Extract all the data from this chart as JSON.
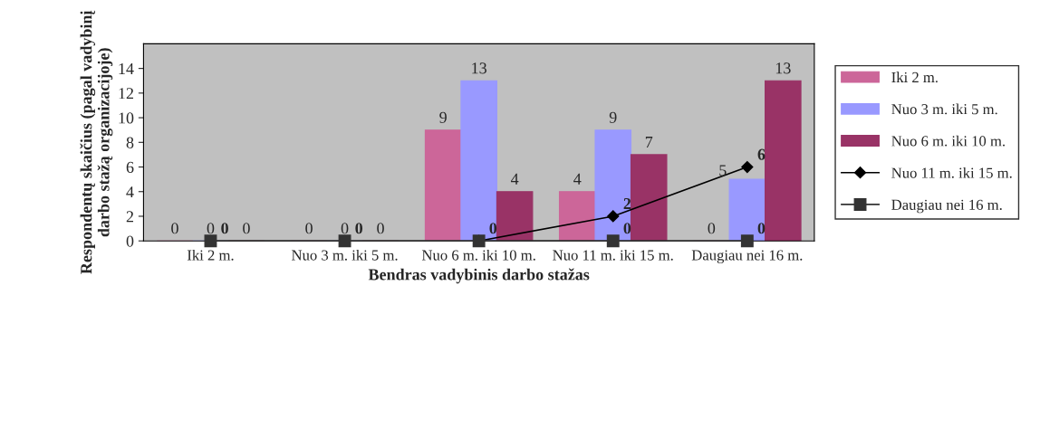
{
  "chart_data": {
    "type": "bar",
    "categories": [
      "Iki 2 m.",
      "Nuo 3 m. iki 5 m.",
      "Nuo 6 m. iki 10 m.",
      "Nuo 11 m. iki 15 m.",
      "Daugiau nei 16 m."
    ],
    "xlabel": "Bendras vadybinis darbo stažas",
    "ylabel": "Respondentų skaičius (pagal vadybinį darbo stažą organizacijoje)",
    "series": [
      {
        "name": "Iki 2 m.",
        "color": "#cc6699",
        "values": [
          0,
          0,
          9,
          4,
          0
        ]
      },
      {
        "name": "Nuo 3 m. iki 5 m.",
        "color": "#9999ff",
        "values": [
          0,
          0,
          13,
          9,
          5
        ]
      },
      {
        "name": "Nuo 6 m. iki 10 m.",
        "color": "#993366",
        "values": [
          0,
          0,
          4,
          7,
          13
        ]
      },
      {
        "name": "Nuo 11 m. iki 15 m.",
        "type": "line",
        "color": "#000000",
        "marker": "diamond",
        "values": [
          null,
          null,
          0,
          2,
          6
        ],
        "value_labels": [
          null,
          null,
          null,
          "2",
          "6"
        ]
      },
      {
        "name": "Daugiau nei 16 m.",
        "type": "line",
        "color": "#333333",
        "marker": "square",
        "values": [
          0,
          0,
          0,
          0,
          0
        ]
      }
    ],
    "ylim": [
      0,
      16
    ],
    "yticks": [
      0,
      2,
      4,
      6,
      8,
      10,
      12,
      14
    ],
    "data_labels": true,
    "legend": "right",
    "grid": false
  }
}
